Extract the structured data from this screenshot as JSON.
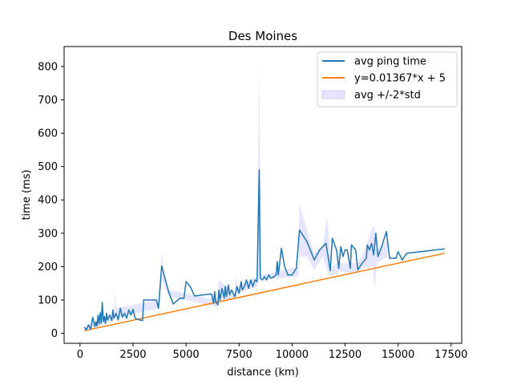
{
  "chart_data": {
    "type": "line",
    "title": "Des Moines",
    "xlabel": "distance (km)",
    "ylabel": "time (ms)",
    "xlim": [
      -750,
      18000
    ],
    "ylim": [
      -30,
      860
    ],
    "xticks": [
      0,
      2500,
      5000,
      7500,
      10000,
      12500,
      15000,
      17500
    ],
    "yticks": [
      0,
      100,
      200,
      300,
      400,
      500,
      600,
      700,
      800
    ],
    "grid": false,
    "legend_position": "top-right",
    "colors": {
      "avg": "#1f77b4",
      "fit": "#ff7f0e",
      "band": "#0000ff"
    },
    "series": [
      {
        "name": "avg ping time",
        "kind": "line",
        "points": [
          [
            200,
            18
          ],
          [
            300,
            10
          ],
          [
            400,
            25
          ],
          [
            500,
            12
          ],
          [
            600,
            48
          ],
          [
            700,
            20
          ],
          [
            750,
            35
          ],
          [
            800,
            22
          ],
          [
            850,
            55
          ],
          [
            900,
            28
          ],
          [
            950,
            62
          ],
          [
            1000,
            30
          ],
          [
            1050,
            92
          ],
          [
            1100,
            35
          ],
          [
            1150,
            50
          ],
          [
            1200,
            30
          ],
          [
            1250,
            60
          ],
          [
            1300,
            40
          ],
          [
            1400,
            55
          ],
          [
            1500,
            38
          ],
          [
            1550,
            70
          ],
          [
            1600,
            45
          ],
          [
            1700,
            60
          ],
          [
            1800,
            40
          ],
          [
            1900,
            75
          ],
          [
            2000,
            48
          ],
          [
            2100,
            60
          ],
          [
            2200,
            45
          ],
          [
            2300,
            70
          ],
          [
            2400,
            55
          ],
          [
            2500,
            72
          ],
          [
            2600,
            45
          ],
          [
            2800,
            40
          ],
          [
            2950,
            38
          ],
          [
            3000,
            100
          ],
          [
            3600,
            100
          ],
          [
            3700,
            75
          ],
          [
            3850,
            202
          ],
          [
            4200,
            120
          ],
          [
            4400,
            88
          ],
          [
            4700,
            105
          ],
          [
            4900,
            105
          ],
          [
            5000,
            155
          ],
          [
            5200,
            140
          ],
          [
            5400,
            112
          ],
          [
            6200,
            118
          ],
          [
            6300,
            90
          ],
          [
            6350,
            125
          ],
          [
            6400,
            95
          ],
          [
            6500,
            85
          ],
          [
            6550,
            130
          ],
          [
            6600,
            100
          ],
          [
            6700,
            135
          ],
          [
            6800,
            105
          ],
          [
            6850,
            140
          ],
          [
            6900,
            110
          ],
          [
            7000,
            145
          ],
          [
            7050,
            115
          ],
          [
            7150,
            130
          ],
          [
            7300,
            110
          ],
          [
            7400,
            140
          ],
          [
            7500,
            120
          ],
          [
            7600,
            155
          ],
          [
            7650,
            130
          ],
          [
            7750,
            140
          ],
          [
            7850,
            160
          ],
          [
            7950,
            135
          ],
          [
            8050,
            160
          ],
          [
            8150,
            140
          ],
          [
            8250,
            160
          ],
          [
            8350,
            155
          ],
          [
            8450,
            490
          ],
          [
            8500,
            165
          ],
          [
            8600,
            160
          ],
          [
            8700,
            170
          ],
          [
            8800,
            160
          ],
          [
            8900,
            175
          ],
          [
            9000,
            165
          ],
          [
            9150,
            170
          ],
          [
            9250,
            175
          ],
          [
            9300,
            215
          ],
          [
            9350,
            175
          ],
          [
            9500,
            255
          ],
          [
            9650,
            200
          ],
          [
            9800,
            175
          ],
          [
            10000,
            175
          ],
          [
            10100,
            185
          ],
          [
            10200,
            195
          ],
          [
            10350,
            310
          ],
          [
            10700,
            275
          ],
          [
            11050,
            220
          ],
          [
            11300,
            250
          ],
          [
            11600,
            270
          ],
          [
            11800,
            188
          ],
          [
            11900,
            285
          ],
          [
            12100,
            250
          ],
          [
            12200,
            195
          ],
          [
            12300,
            260
          ],
          [
            12400,
            230
          ],
          [
            12500,
            250
          ],
          [
            12600,
            250
          ],
          [
            12750,
            195
          ],
          [
            12800,
            265
          ],
          [
            13000,
            250
          ],
          [
            13100,
            190
          ],
          [
            13300,
            210
          ],
          [
            13500,
            225
          ],
          [
            13550,
            265
          ],
          [
            13650,
            250
          ],
          [
            13750,
            270
          ],
          [
            13850,
            235
          ],
          [
            13950,
            300
          ],
          [
            14050,
            230
          ],
          [
            14200,
            255
          ],
          [
            14450,
            305
          ],
          [
            14600,
            225
          ],
          [
            14900,
            225
          ],
          [
            15000,
            245
          ],
          [
            15200,
            220
          ],
          [
            15400,
            240
          ],
          [
            17200,
            253
          ]
        ]
      },
      {
        "name": "y=0.01367*x + 5",
        "kind": "line",
        "points": [
          [
            200,
            7.7
          ],
          [
            17200,
            240.1
          ]
        ]
      },
      {
        "name": "avg +/-2*std",
        "kind": "band",
        "points": [
          [
            200,
            14,
            22
          ],
          [
            1000,
            20,
            40
          ],
          [
            1050,
            60,
            120
          ],
          [
            1100,
            25,
            45
          ],
          [
            1600,
            40,
            50
          ],
          [
            1650,
            50,
            140
          ],
          [
            1700,
            45,
            75
          ],
          [
            3750,
            75,
            100
          ],
          [
            3850,
            160,
            245
          ],
          [
            4000,
            140,
            160
          ],
          [
            4200,
            110,
            130
          ],
          [
            6450,
            80,
            100
          ],
          [
            6500,
            60,
            110
          ],
          [
            6550,
            100,
            160
          ],
          [
            7300,
            105,
            120
          ],
          [
            7350,
            105,
            170
          ],
          [
            7450,
            120,
            140
          ],
          [
            8350,
            140,
            170
          ],
          [
            8450,
            170,
            810
          ],
          [
            8550,
            160,
            175
          ],
          [
            10300,
            170,
            200
          ],
          [
            10350,
            230,
            390
          ],
          [
            10700,
            230,
            310
          ],
          [
            11050,
            190,
            240
          ],
          [
            11450,
            230,
            260
          ],
          [
            11650,
            190,
            355
          ],
          [
            11850,
            170,
            200
          ],
          [
            12200,
            185,
            210
          ],
          [
            13050,
            180,
            210
          ],
          [
            13300,
            195,
            230
          ],
          [
            13800,
            200,
            320
          ],
          [
            13900,
            135,
            320
          ],
          [
            14000,
            210,
            250
          ],
          [
            14500,
            230,
            280
          ]
        ]
      }
    ]
  }
}
